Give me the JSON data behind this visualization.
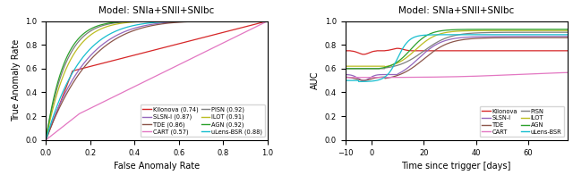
{
  "title": "Model: SNIa+SNII+SNIbc",
  "left_xlabel": "False Anomaly Rate",
  "left_ylabel": "True Anomaly Rate",
  "right_xlabel": "Time since trigger [days]",
  "right_ylabel": "AUC",
  "colors": {
    "Kilonova": "#d62728",
    "SLSN-I": "#9467bd",
    "TDE": "#8c564b",
    "CART": "#e377c2",
    "PISN": "#7f7f7f",
    "ILOT": "#bcbd22",
    "AGN": "#2ca02c",
    "uLens-BSR": "#17becf"
  },
  "roc_labels": {
    "Kilonova": "Kilonova (0.74)",
    "SLSN-I": "SLSN-I (0.87)",
    "TDE": "TDE (0.86)",
    "CART": "CART (0.57)",
    "PISN": "PISN (0.92)",
    "ILOT": "ILOT (0.91)",
    "AGN": "AGN (0.92)",
    "uLens-BSR": "uLens-BSR (0.88)"
  }
}
